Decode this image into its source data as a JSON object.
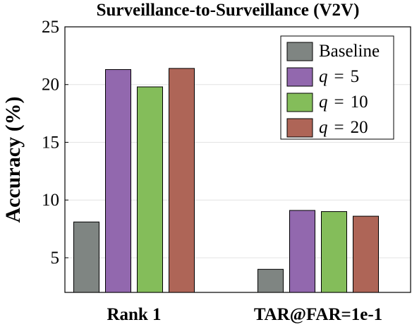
{
  "chart_data": {
    "type": "bar",
    "title": "Surveillance-to-Surveillance (V2V)",
    "xlabel": "",
    "ylabel": "Accuracy (%)",
    "categories": [
      "Rank 1",
      "TAR@FAR=1e-1"
    ],
    "ylim": [
      2,
      25
    ],
    "yticks": [
      5,
      10,
      15,
      20,
      25
    ],
    "grid": true,
    "legend_position": "top-right",
    "series": [
      {
        "name": "Baseline",
        "var": "",
        "op": "",
        "num": "",
        "color": "#7f8582",
        "values": [
          8.1,
          4.0
        ]
      },
      {
        "name": "q = 5",
        "var": "q",
        "op": "=",
        "num": "5",
        "color": "#9268ae",
        "values": [
          21.3,
          9.1
        ]
      },
      {
        "name": "q = 10",
        "var": "q",
        "op": "=",
        "num": "10",
        "color": "#84bd5a",
        "values": [
          19.8,
          9.0
        ]
      },
      {
        "name": "q = 20",
        "var": "q",
        "op": "=",
        "num": "20",
        "color": "#ae6557",
        "values": [
          21.4,
          8.6
        ]
      }
    ]
  }
}
